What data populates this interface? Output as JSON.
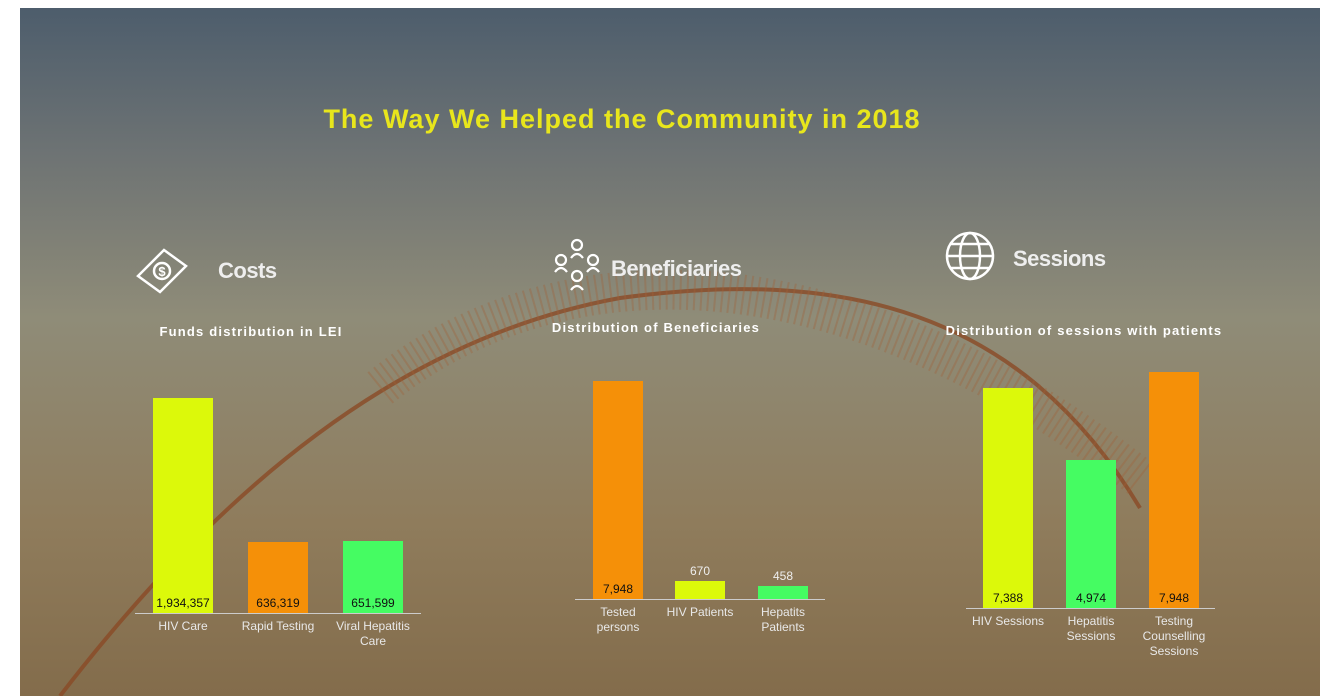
{
  "title": "The Way We Helped the Community in 2018",
  "chart_data": [
    {
      "type": "bar",
      "title": "Costs",
      "subtitle": "Funds distribution in LEI",
      "categories": [
        "HIV Care",
        "Rapid Testing",
        "Viral Hepatitis Care"
      ],
      "values": [
        1934357,
        636319,
        651599
      ],
      "value_labels": [
        "1,934,357",
        "636,319",
        "651,599"
      ],
      "colors": [
        "#dcf90a",
        "#f59008",
        "#45fc62"
      ],
      "ylim": [
        0,
        2000000
      ]
    },
    {
      "type": "bar",
      "title": "Beneficiaries",
      "subtitle": "Distribution of Beneficiaries",
      "categories": [
        "Tested persons",
        "HIV Patients",
        "Hepatits Patients"
      ],
      "values": [
        7948,
        670,
        458
      ],
      "value_labels": [
        "7,948",
        "670",
        "458"
      ],
      "colors": [
        "#f59008",
        "#dcf90a",
        "#45fc62"
      ],
      "ylim": [
        0,
        8000
      ]
    },
    {
      "type": "bar",
      "title": "Sessions",
      "subtitle": "Distribution of sessions with patients",
      "categories": [
        "HIV Sessions",
        "Hepatitis Sessions",
        "Testing Counselling Sessions"
      ],
      "values": [
        7388,
        4974,
        7948
      ],
      "value_labels": [
        "7,388",
        "4,974",
        "7,948"
      ],
      "colors": [
        "#dcf90a",
        "#45fc62",
        "#f59008"
      ],
      "ylim": [
        0,
        8000
      ]
    }
  ]
}
